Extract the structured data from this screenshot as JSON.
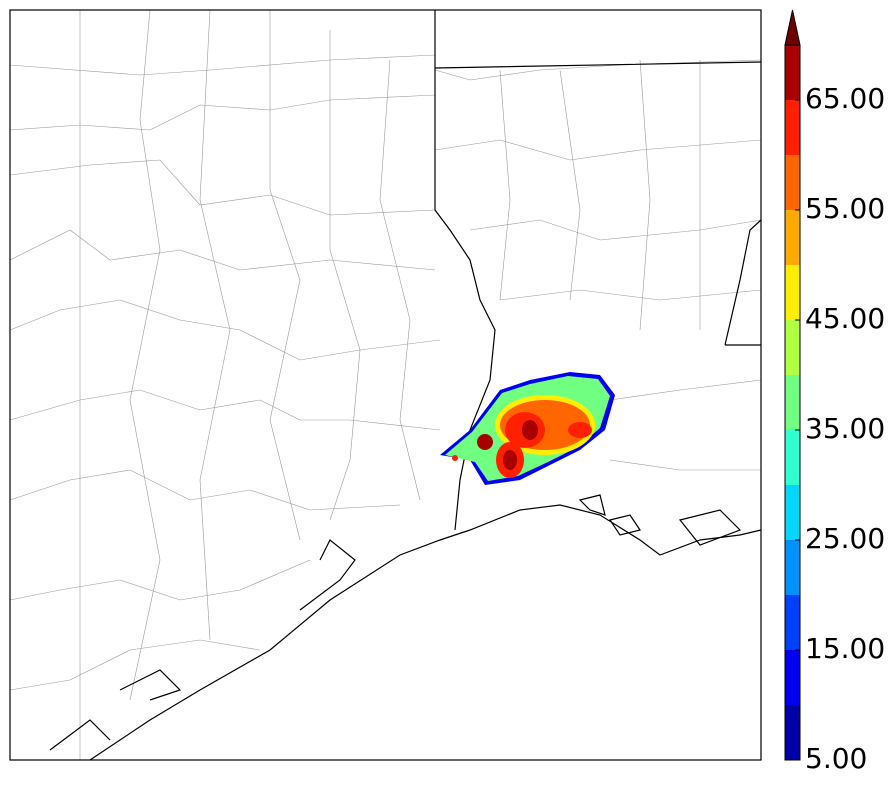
{
  "colorbar": {
    "levels": [
      5,
      10,
      15,
      20,
      25,
      30,
      35,
      40,
      45,
      50,
      55,
      60,
      65,
      70
    ],
    "colors": [
      "#0000a8",
      "#0000f0",
      "#0040ff",
      "#0090ff",
      "#00d8ff",
      "#30ffd0",
      "#70ff80",
      "#b0ff40",
      "#ffee00",
      "#ffaa00",
      "#ff6600",
      "#ff2000",
      "#a80000"
    ],
    "extend_color": "#700000",
    "ticks": [
      {
        "value": 5,
        "label": "5.00"
      },
      {
        "value": 15,
        "label": "15.00"
      },
      {
        "value": 25,
        "label": "25.00"
      },
      {
        "value": 35,
        "label": "35.00"
      },
      {
        "value": 45,
        "label": "45.00"
      },
      {
        "value": 55,
        "label": "55.00"
      },
      {
        "value": 65,
        "label": "65.00"
      }
    ]
  }
}
